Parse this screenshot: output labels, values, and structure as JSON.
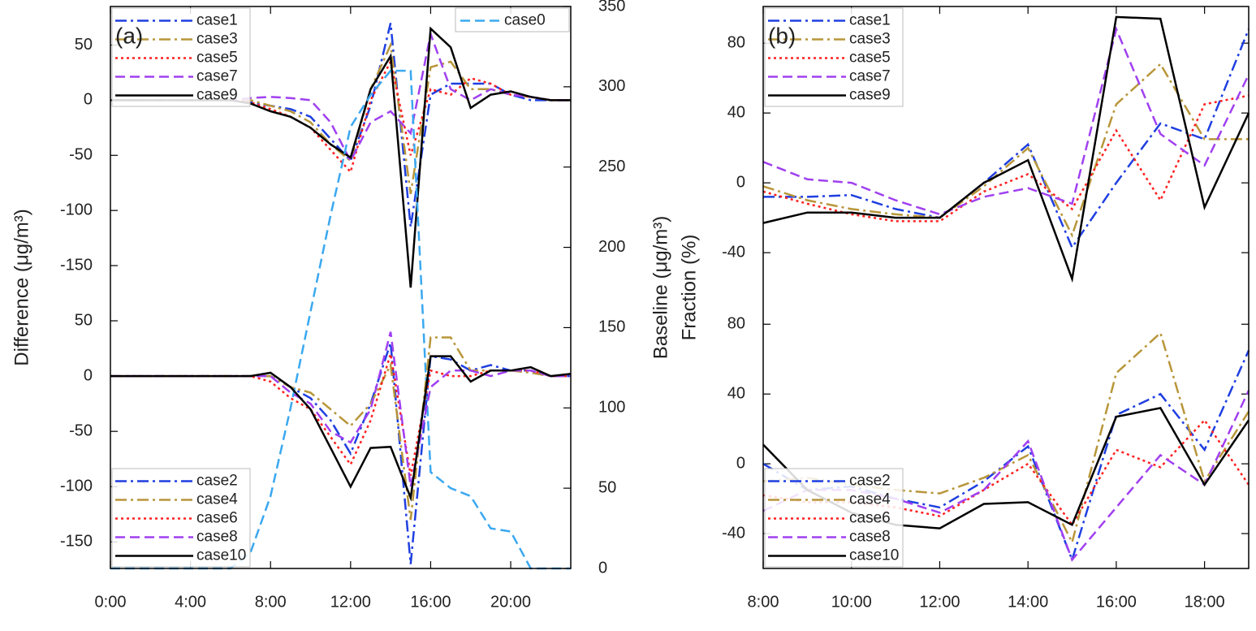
{
  "chart_data": [
    {
      "type": "line",
      "panel_label": "(a)",
      "ylabel": "Difference (μg/m³)",
      "y2label": "Baseline (μg/m³)",
      "x": [
        0,
        1,
        2,
        3,
        4,
        5,
        6,
        7,
        8,
        9,
        10,
        11,
        12,
        13,
        14,
        15,
        16,
        17,
        18,
        19,
        20,
        21,
        22,
        23
      ],
      "xlim": [
        0,
        23
      ],
      "xticks": [
        {
          "value": 0,
          "label": "0:00"
        },
        {
          "value": 4,
          "label": "4:00"
        },
        {
          "value": 8,
          "label": "8:00"
        },
        {
          "value": 12,
          "label": "12:00"
        },
        {
          "value": 16,
          "label": "16:00"
        },
        {
          "value": 20,
          "label": "20:00"
        }
      ],
      "y2lim": [
        0,
        350
      ],
      "y2ticks": [
        0,
        50,
        100,
        150,
        200,
        250,
        300,
        350
      ],
      "y2_legend": "upper right",
      "subplots": [
        {
          "ylim": [
            -175,
            85
          ],
          "yticks": [
            50,
            0,
            -50,
            -100,
            -150
          ],
          "legend": "upper left",
          "series": [
            {
              "name": "case1",
              "color": "#1f3fe0",
              "style": "dashdot",
              "values": [
                0,
                0,
                0,
                0,
                0,
                0,
                0,
                -2,
                -5,
                -8,
                -15,
                -35,
                -55,
                -5,
                70,
                -115,
                5,
                15,
                15,
                15,
                5,
                0,
                0,
                0
              ]
            },
            {
              "name": "case3",
              "color": "#b8963a",
              "style": "dashdot",
              "values": [
                0,
                0,
                0,
                0,
                0,
                0,
                0,
                0,
                -5,
                -10,
                -20,
                -40,
                -55,
                10,
                50,
                -85,
                30,
                35,
                10,
                10,
                5,
                3,
                0,
                0
              ]
            },
            {
              "name": "case5",
              "color": "#ff2020",
              "style": "dotted",
              "values": [
                0,
                0,
                0,
                0,
                0,
                0,
                0,
                -2,
                -8,
                -15,
                -25,
                -45,
                -65,
                0,
                35,
                -50,
                10,
                5,
                20,
                15,
                5,
                3,
                0,
                0
              ]
            },
            {
              "name": "case7",
              "color": "#a040f0",
              "style": "dashed",
              "values": [
                0,
                0,
                0,
                0,
                0,
                0,
                0,
                2,
                3,
                2,
                0,
                -20,
                -55,
                -20,
                -10,
                -30,
                60,
                10,
                0,
                10,
                5,
                3,
                0,
                0
              ]
            },
            {
              "name": "case9",
              "color": "#000000",
              "style": "solid",
              "values": [
                0,
                0,
                0,
                0,
                0,
                0,
                0,
                -3,
                -10,
                -15,
                -25,
                -40,
                -52,
                10,
                40,
                -170,
                65,
                48,
                -7,
                5,
                8,
                3,
                0,
                0
              ]
            },
            {
              "name": "case0",
              "color": "#3aa8f0",
              "style": "dashed",
              "axis": "y2",
              "values": [
                0,
                0,
                0,
                0,
                0,
                0,
                0,
                10,
                45,
                100,
                160,
                220,
                275,
                295,
                310,
                310,
                60,
                50,
                45,
                25,
                23,
                0,
                0,
                0
              ]
            }
          ]
        },
        {
          "ylim": [
            -174,
            75
          ],
          "yticks": [
            50,
            0,
            -50,
            -100,
            -150
          ],
          "legend": "lower left",
          "series": [
            {
              "name": "case2",
              "color": "#1f3fe0",
              "style": "dashdot",
              "values": [
                0,
                0,
                0,
                0,
                0,
                0,
                0,
                0,
                0,
                -10,
                -20,
                -40,
                -70,
                -25,
                30,
                -170,
                18,
                15,
                5,
                10,
                5,
                5,
                0,
                0
              ]
            },
            {
              "name": "case4",
              "color": "#b8963a",
              "style": "dashdot",
              "values": [
                0,
                0,
                0,
                0,
                0,
                0,
                0,
                0,
                0,
                -10,
                -15,
                -30,
                -45,
                -25,
                10,
                -130,
                35,
                35,
                5,
                5,
                5,
                3,
                0,
                0
              ]
            },
            {
              "name": "case6",
              "color": "#ff2020",
              "style": "dotted",
              "values": [
                0,
                0,
                0,
                0,
                0,
                0,
                0,
                0,
                -5,
                -20,
                -30,
                -55,
                -80,
                -40,
                20,
                -90,
                5,
                0,
                0,
                5,
                5,
                5,
                0,
                0
              ]
            },
            {
              "name": "case8",
              "color": "#a040f0",
              "style": "dashed",
              "values": [
                0,
                0,
                0,
                0,
                0,
                0,
                0,
                0,
                0,
                -15,
                -25,
                -50,
                -60,
                -30,
                40,
                -100,
                -10,
                5,
                5,
                0,
                5,
                5,
                0,
                0
              ]
            },
            {
              "name": "case10",
              "color": "#000000",
              "style": "solid",
              "values": [
                0,
                0,
                0,
                0,
                0,
                0,
                0,
                0,
                3,
                -10,
                -30,
                -65,
                -100,
                -65,
                -64,
                -110,
                18,
                18,
                -5,
                5,
                5,
                8,
                0,
                2
              ]
            }
          ]
        }
      ]
    },
    {
      "type": "line",
      "panel_label": "(b)",
      "ylabel": "Fraction (%)",
      "x": [
        8,
        9,
        10,
        11,
        12,
        13,
        14,
        15,
        16,
        17,
        18,
        19
      ],
      "xlim": [
        8,
        19
      ],
      "xticks": [
        {
          "value": 8,
          "label": "8:00"
        },
        {
          "value": 10,
          "label": "10:00"
        },
        {
          "value": 12,
          "label": "12:00"
        },
        {
          "value": 14,
          "label": "14:00"
        },
        {
          "value": 16,
          "label": "16:00"
        },
        {
          "value": 18,
          "label": "18:00"
        }
      ],
      "subplots": [
        {
          "ylim": [
            -59,
            101
          ],
          "yticks": [
            80,
            40,
            0,
            -40
          ],
          "legend": "upper left",
          "series": [
            {
              "name": "case1",
              "color": "#1f3fe0",
              "style": "dashdot",
              "values": [
                -8,
                -8,
                -7,
                -15,
                -20,
                0,
                22,
                -37,
                0,
                34,
                25,
                88
              ]
            },
            {
              "name": "case3",
              "color": "#b8963a",
              "style": "dashdot",
              "values": [
                -2,
                -10,
                -15,
                -18,
                -20,
                -2,
                20,
                -30,
                45,
                68,
                25,
                25
              ]
            },
            {
              "name": "case5",
              "color": "#ff2020",
              "style": "dotted",
              "values": [
                -5,
                -12,
                -18,
                -22,
                -22,
                -5,
                5,
                -15,
                30,
                -10,
                45,
                50
              ]
            },
            {
              "name": "case7",
              "color": "#a040f0",
              "style": "dashed",
              "values": [
                12,
                2,
                0,
                -10,
                -18,
                -8,
                -3,
                -12,
                88,
                28,
                10,
                62
              ]
            },
            {
              "name": "case9",
              "color": "#000000",
              "style": "solid",
              "values": [
                -23,
                -17,
                -17,
                -20,
                -20,
                0,
                13,
                -55,
                95,
                94,
                -14,
                40
              ]
            }
          ]
        },
        {
          "ylim": [
            -60,
            102
          ],
          "yticks": [
            80,
            40,
            0,
            -40
          ],
          "legend": "lower left",
          "series": [
            {
              "name": "case2",
              "color": "#1f3fe0",
              "style": "dashdot",
              "values": [
                0,
                -15,
                -13,
                -20,
                -25,
                -10,
                10,
                -55,
                28,
                40,
                8,
                65
              ]
            },
            {
              "name": "case4",
              "color": "#b8963a",
              "style": "dashdot",
              "values": [
                -10,
                -8,
                -12,
                -15,
                -17,
                -8,
                5,
                -45,
                52,
                75,
                -10,
                30
              ]
            },
            {
              "name": "case6",
              "color": "#ff2020",
              "style": "dotted",
              "values": [
                -18,
                -22,
                -22,
                -25,
                -30,
                -15,
                0,
                -35,
                8,
                -2,
                25,
                -12
              ]
            },
            {
              "name": "case8",
              "color": "#a040f0",
              "style": "dashed",
              "values": [
                -27,
                -15,
                -15,
                -20,
                -28,
                -15,
                13,
                -55,
                -25,
                5,
                -12,
                42
              ]
            },
            {
              "name": "case10",
              "color": "#000000",
              "style": "solid",
              "values": [
                11,
                -15,
                -28,
                -35,
                -37,
                -23,
                -22,
                -35,
                27,
                32,
                -12,
                25
              ]
            }
          ]
        }
      ]
    }
  ]
}
